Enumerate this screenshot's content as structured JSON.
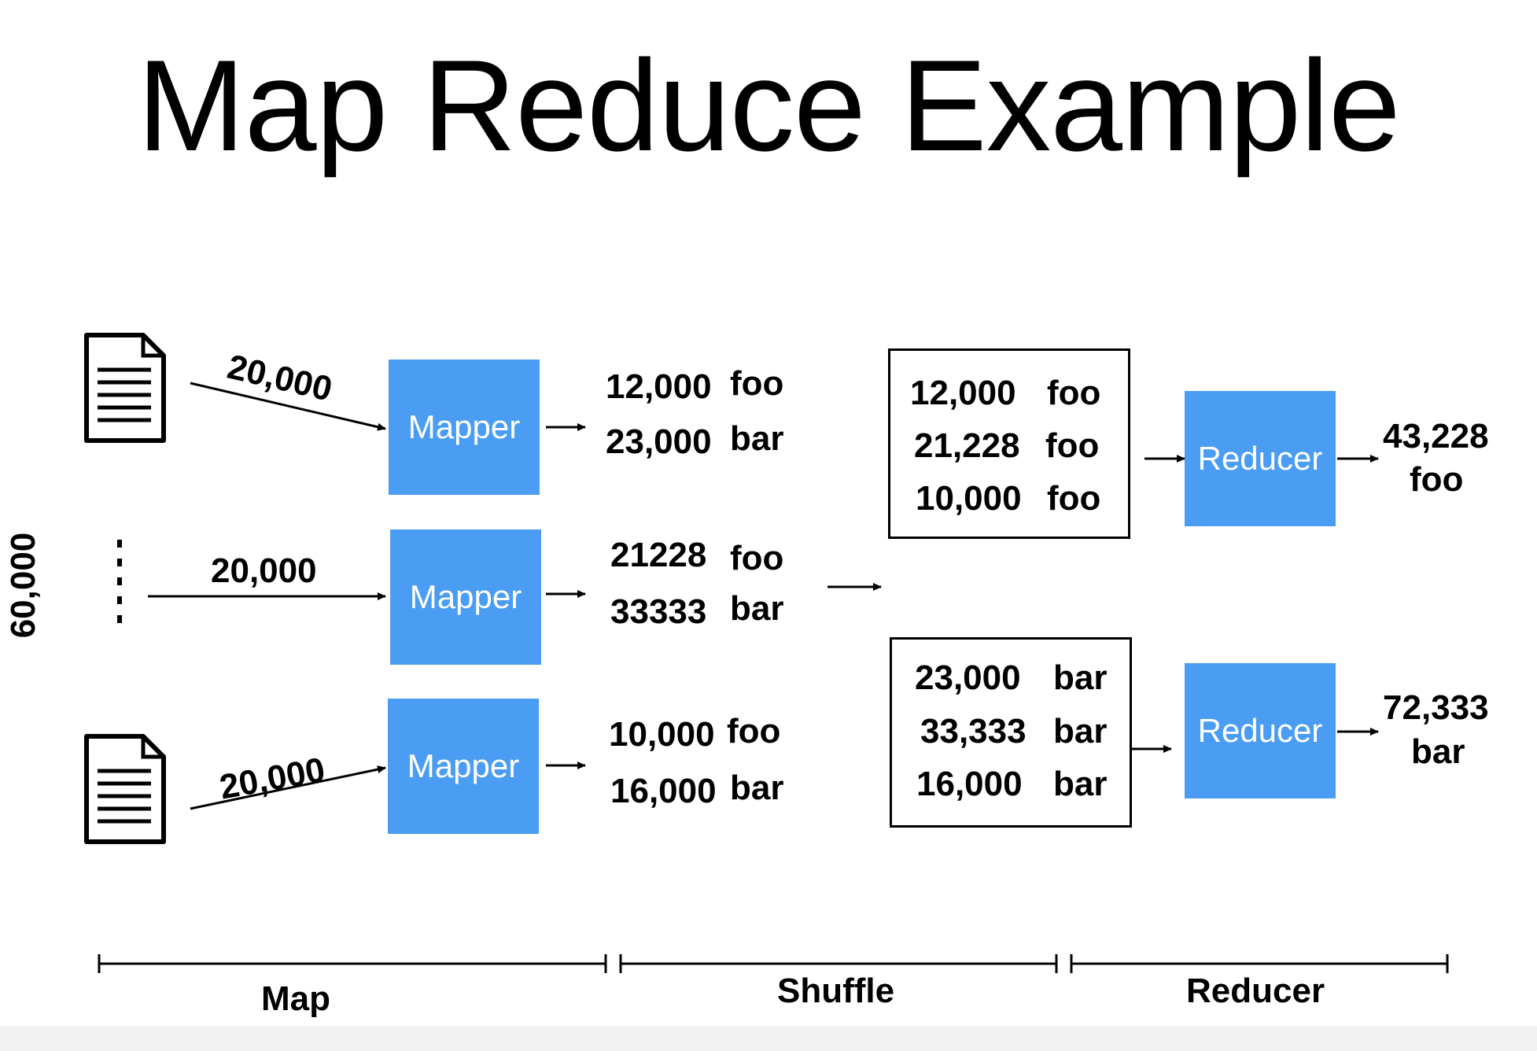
{
  "title": "Map Reduce Example",
  "total_input": "60,000",
  "split_labels": [
    "20,000",
    "20,000",
    "20,000"
  ],
  "mapper_label": "Mapper",
  "mapper_outputs": [
    [
      {
        "count": "12,000",
        "key": "foo"
      },
      {
        "count": "23,000",
        "key": "bar"
      }
    ],
    [
      {
        "count": "21228",
        "key": "foo"
      },
      {
        "count": "33333",
        "key": "bar"
      }
    ],
    [
      {
        "count": "10,000",
        "key": "foo"
      },
      {
        "count": "16,000",
        "key": "bar"
      }
    ]
  ],
  "shuffle_groups": [
    [
      {
        "count": "12,000",
        "key": "foo"
      },
      {
        "count": "21,228",
        "key": "foo"
      },
      {
        "count": "10,000",
        "key": "foo"
      }
    ],
    [
      {
        "count": "23,000",
        "key": "bar"
      },
      {
        "count": "33,333",
        "key": "bar"
      },
      {
        "count": "16,000",
        "key": "bar"
      }
    ]
  ],
  "reducer_label": "Reducer",
  "results": [
    {
      "count": "43,228",
      "key": "foo"
    },
    {
      "count": "72,333",
      "key": "bar"
    }
  ],
  "phases": [
    "Map",
    "Shuffle",
    "Reducer"
  ],
  "colors": {
    "box": "#4a9df2",
    "text_on_box": "#ffffff"
  }
}
